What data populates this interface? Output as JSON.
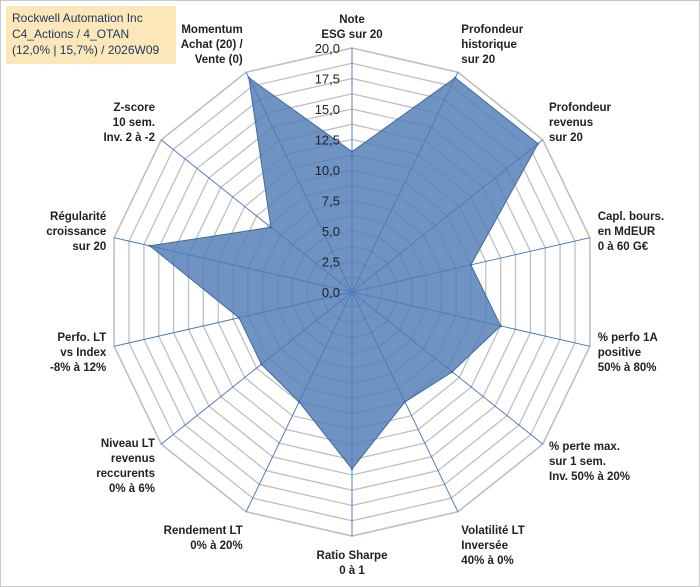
{
  "chart_data": {
    "type": "radar",
    "title_lines": [
      "Rockwell Automation Inc",
      "C4_Actions / 4_OTAN",
      "(12,0% | 15,7%) / 2026W09"
    ],
    "axes": [
      {
        "label": [
          "Note",
          "ESG sur 20"
        ],
        "value": 11.5
      },
      {
        "label": [
          "Profondeur",
          "historique",
          "sur 20"
        ],
        "value": 19.5
      },
      {
        "label": [
          "Profondeur",
          "revenus",
          "sur 20"
        ],
        "value": 19.5
      },
      {
        "label": [
          "Capl. bours.",
          "en MdEUR",
          "0 à 60 G€"
        ],
        "value": 10.0
      },
      {
        "label": [
          "% perfo 1A",
          "positive",
          "50% à 80%"
        ],
        "value": 12.5
      },
      {
        "label": [
          "% perte max.",
          "sur 1 sem.",
          "Inv. 50% à 20%"
        ],
        "value": 10.5
      },
      {
        "label": [
          "Volatilité LT",
          "Inversée",
          "40% à 0%"
        ],
        "value": 10.0
      },
      {
        "label": [
          "Ratio Sharpe",
          "0 à 1"
        ],
        "value": 14.5
      },
      {
        "label": [
          "Rendement LT",
          "0% à 20%"
        ],
        "value": 10.0
      },
      {
        "label": [
          "Niveau LT",
          "revenus",
          "reccurents",
          "0% à 6%"
        ],
        "value": 9.5
      },
      {
        "label": [
          "Perfo. LT",
          "vs Index",
          "-8% à 12%"
        ],
        "value": 9.5
      },
      {
        "label": [
          "Régularité",
          "croissance",
          "sur 20"
        ],
        "value": 17.0
      },
      {
        "label": [
          "Z-score",
          "10 sem.",
          "Inv. 2 à -2"
        ],
        "value": 8.5
      },
      {
        "label": [
          "Momentum",
          "Achat (20) /",
          "Vente (0)"
        ],
        "value": 19.5
      }
    ],
    "rmin": 0,
    "rmax": 20,
    "ticks": [
      "0,0",
      "2,5",
      "5,0",
      "7,5",
      "10,0",
      "12,5",
      "15,0",
      "17,5",
      "20,0"
    ],
    "series_color": "#4f7bb5",
    "grid_color": "#bfbfbf",
    "spoke_color": "#4472c4"
  }
}
